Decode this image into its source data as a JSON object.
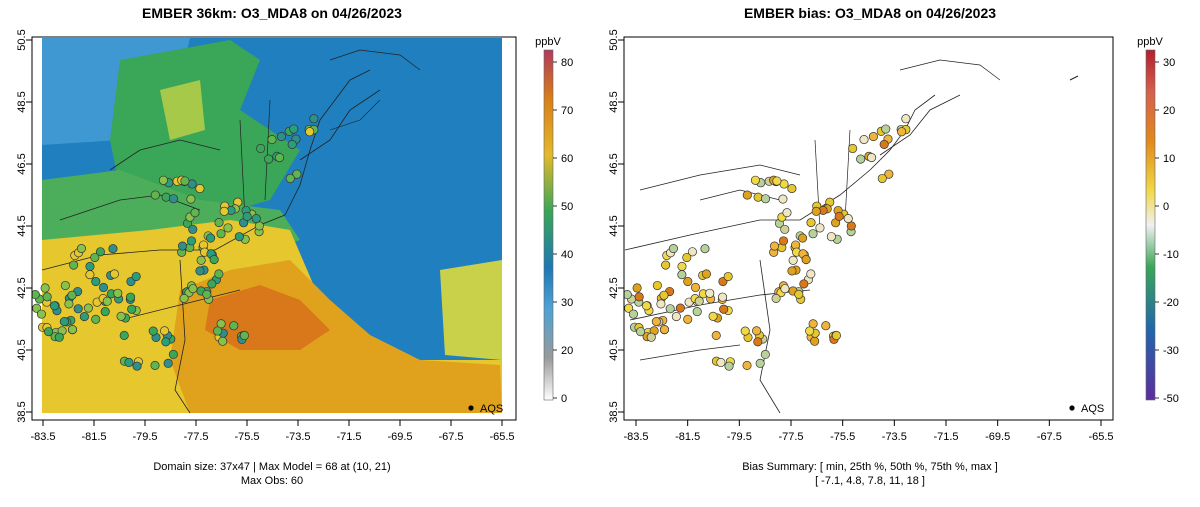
{
  "panels": {
    "left": {
      "title": "EMBER 36km: O3_MDA8 on 04/26/2023",
      "footer_line1": "Domain size: 37x47 | Max Model = 68 at (10, 21)",
      "footer_line2": "Max Obs: 60",
      "colorbar": {
        "unit": "ppbV",
        "ticks": [
          "80",
          "70",
          "60",
          "50",
          "40",
          "30",
          "20",
          "0"
        ],
        "stops": [
          "#b03a5b",
          "#d87f1a",
          "#e4b92a",
          "#3aa658",
          "#1f78b4",
          "#4fa2d5",
          "#9a9a9a",
          "#ffffff"
        ]
      },
      "legend_label": "AQS"
    },
    "right": {
      "title": "EMBER bias: O3_MDA8 on 04/26/2023",
      "footer_line1": "Bias Summary: [ min, 25th %, 50th %, 75th %, max ]",
      "footer_line2": "[ -7.1,   4.8,   7.8,   11,   18 ]",
      "colorbar": {
        "unit": "ppbV",
        "ticks": [
          "30",
          "20",
          "10",
          "0",
          "-10",
          "-20",
          "-30",
          "-50"
        ],
        "stops": [
          "#b21f2d",
          "#d6604d",
          "#e08a1c",
          "#f1d845",
          "#f0f0f0",
          "#3aa658",
          "#2166ac",
          "#5e2d9e"
        ]
      },
      "legend_label": "AQS"
    }
  },
  "axes": {
    "x_ticks": [
      "-83.5",
      "-81.5",
      "-79.5",
      "-77.5",
      "-75.5",
      "-73.5",
      "-71.5",
      "-69.5",
      "-67.5",
      "-65.5"
    ],
    "y_ticks": [
      "50.5",
      "48.5",
      "46.5",
      "44.5",
      "42.5",
      "40.5",
      "38.5"
    ]
  },
  "colors": {
    "ocean_blue": "#1f7fbf",
    "land_orange": "#e0a21c",
    "green": "#3aa658",
    "yellow": "#e6c72e",
    "dark_orange": "#d9781a"
  }
}
